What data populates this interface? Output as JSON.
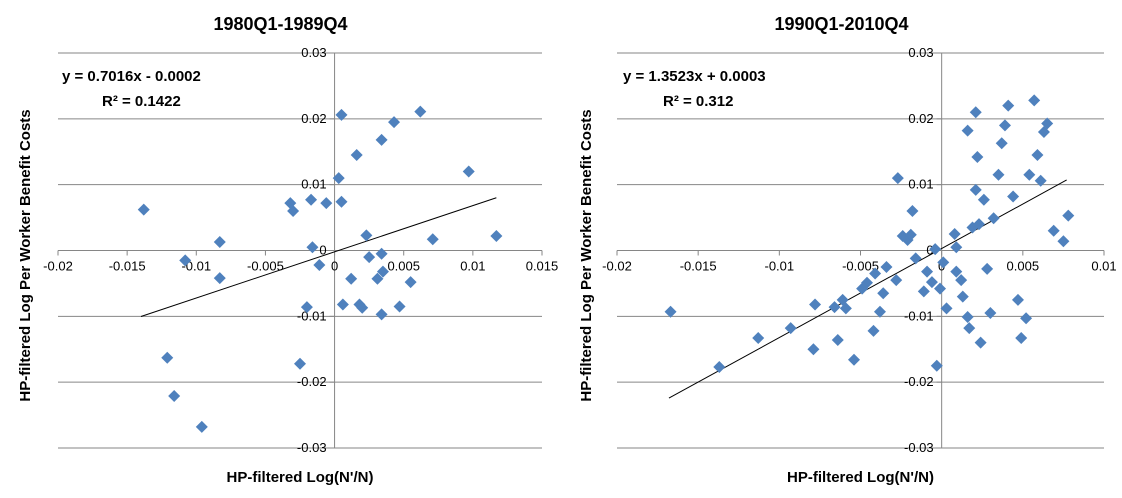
{
  "chart_data": [
    {
      "type": "scatter",
      "title": "1980Q1-1989Q4",
      "xlabel": "HP-filtered Log(N'/N)",
      "ylabel": "HP-filtered Log Per Worker Benefit Costs",
      "xlim": [
        -0.02,
        0.015
      ],
      "ylim": [
        -0.03,
        0.03
      ],
      "x_ticks": [
        "-0.02",
        "-0.015",
        "-0.01",
        "-0.005",
        "0",
        "0.005",
        "0.01",
        "0.015"
      ],
      "y_ticks": [
        "-0.03",
        "-0.02",
        "-0.01",
        "0",
        "0.01",
        "0.02",
        "0.03"
      ],
      "grid": "horizontal",
      "marker_color": "#4F81BD",
      "trendline": {
        "slope": 0.7016,
        "intercept": -0.0002,
        "x_range": [
          -0.014,
          0.0117
        ]
      },
      "equation": "y = 0.7016x - 0.0002",
      "r2_label": "R² = 0.1422",
      "points": [
        {
          "x": -0.0138,
          "y": 0.0062
        },
        {
          "x": -0.0108,
          "y": -0.0015
        },
        {
          "x": -0.0083,
          "y": 0.0013
        },
        {
          "x": -0.0083,
          "y": -0.0042
        },
        {
          "x": -0.0121,
          "y": -0.0163
        },
        {
          "x": -0.0116,
          "y": -0.0221
        },
        {
          "x": -0.0096,
          "y": -0.0268
        },
        {
          "x": -0.0032,
          "y": 0.0072
        },
        {
          "x": -0.003,
          "y": 0.006
        },
        {
          "x": -0.0017,
          "y": 0.0077
        },
        {
          "x": -0.0006,
          "y": 0.0072
        },
        {
          "x": 0.0005,
          "y": 0.0074
        },
        {
          "x": 0.0003,
          "y": 0.011
        },
        {
          "x": 0.0016,
          "y": 0.0145
        },
        {
          "x": 0.0005,
          "y": 0.0206
        },
        {
          "x": 0.0043,
          "y": 0.0195
        },
        {
          "x": 0.0034,
          "y": 0.0168
        },
        {
          "x": 0.0062,
          "y": 0.0211
        },
        {
          "x": 0.0097,
          "y": 0.012
        },
        {
          "x": -0.0016,
          "y": 0.0005
        },
        {
          "x": -0.0011,
          "y": -0.0022
        },
        {
          "x": 0.0023,
          "y": 0.0023
        },
        {
          "x": 0.0025,
          "y": -0.001
        },
        {
          "x": 0.0034,
          "y": -0.0005
        },
        {
          "x": 0.0031,
          "y": -0.0043
        },
        {
          "x": 0.0035,
          "y": -0.0032
        },
        {
          "x": 0.0055,
          "y": -0.0048
        },
        {
          "x": 0.0071,
          "y": 0.0017
        },
        {
          "x": 0.0117,
          "y": 0.0022
        },
        {
          "x": 0.0012,
          "y": -0.0043
        },
        {
          "x": -0.002,
          "y": -0.0086
        },
        {
          "x": 0.0006,
          "y": -0.0082
        },
        {
          "x": 0.0018,
          "y": -0.0082
        },
        {
          "x": 0.002,
          "y": -0.0087
        },
        {
          "x": 0.0034,
          "y": -0.0097
        },
        {
          "x": 0.0047,
          "y": -0.0085
        },
        {
          "x": -0.0025,
          "y": -0.0172
        }
      ]
    },
    {
      "type": "scatter",
      "title": "1990Q1-2010Q4",
      "xlabel": "HP-filtered Log(N'/N)",
      "ylabel": "HP-filtered Log Per Worker Benefit Costs",
      "xlim": [
        -0.02,
        0.01
      ],
      "ylim": [
        -0.03,
        0.03
      ],
      "x_ticks": [
        "-0.02",
        "-0.015",
        "-0.01",
        "-0.005",
        "0",
        "0.005",
        "0.01"
      ],
      "y_ticks": [
        "-0.03",
        "-0.02",
        "-0.01",
        "0",
        "0.01",
        "0.02",
        "0.03"
      ],
      "grid": "horizontal",
      "marker_color": "#4F81BD",
      "trendline": {
        "slope": 1.3523,
        "intercept": 0.0003,
        "x_range": [
          -0.0168,
          0.0077
        ]
      },
      "equation": "y = 1.3523x + 0.0003",
      "r2_label": "R² = 0.312",
      "points": [
        {
          "x": -0.0167,
          "y": -0.0093
        },
        {
          "x": -0.0137,
          "y": -0.0177
        },
        {
          "x": -0.0113,
          "y": -0.0133
        },
        {
          "x": -0.0093,
          "y": -0.0118
        },
        {
          "x": -0.0078,
          "y": -0.0082
        },
        {
          "x": -0.0079,
          "y": -0.015
        },
        {
          "x": -0.0066,
          "y": -0.0086
        },
        {
          "x": -0.0061,
          "y": -0.0075
        },
        {
          "x": -0.0059,
          "y": -0.0088
        },
        {
          "x": -0.0064,
          "y": -0.0136
        },
        {
          "x": -0.0054,
          "y": -0.0166
        },
        {
          "x": -0.0049,
          "y": -0.0058
        },
        {
          "x": -0.0046,
          "y": -0.0049
        },
        {
          "x": -0.0041,
          "y": -0.0035
        },
        {
          "x": -0.0034,
          "y": -0.0025
        },
        {
          "x": -0.0036,
          "y": -0.0065
        },
        {
          "x": -0.0038,
          "y": -0.0093
        },
        {
          "x": -0.0042,
          "y": -0.0122
        },
        {
          "x": -0.0028,
          "y": -0.0045
        },
        {
          "x": -0.0024,
          "y": 0.0022
        },
        {
          "x": -0.0021,
          "y": 0.0016
        },
        {
          "x": -0.0019,
          "y": 0.0024
        },
        {
          "x": -0.0018,
          "y": 0.006
        },
        {
          "x": -0.0027,
          "y": 0.011
        },
        {
          "x": -0.0016,
          "y": -0.0012
        },
        {
          "x": -0.0009,
          "y": -0.0032
        },
        {
          "x": -0.0006,
          "y": -0.0048
        },
        {
          "x": -0.0004,
          "y": 0.0002
        },
        {
          "x": 0.0001,
          "y": -0.0018
        },
        {
          "x": -0.0001,
          "y": -0.0058
        },
        {
          "x": 0.0003,
          "y": -0.0088
        },
        {
          "x": -0.0003,
          "y": -0.0175
        },
        {
          "x": 0.0008,
          "y": 0.0025
        },
        {
          "x": 0.0009,
          "y": -0.0032
        },
        {
          "x": 0.0012,
          "y": -0.0045
        },
        {
          "x": 0.0013,
          "y": -0.007
        },
        {
          "x": 0.0016,
          "y": -0.0101
        },
        {
          "x": 0.0017,
          "y": -0.0118
        },
        {
          "x": 0.0019,
          "y": 0.0035
        },
        {
          "x": 0.0021,
          "y": 0.0092
        },
        {
          "x": 0.0022,
          "y": 0.0142
        },
        {
          "x": 0.0021,
          "y": 0.021
        },
        {
          "x": 0.0026,
          "y": 0.0077
        },
        {
          "x": 0.0028,
          "y": -0.0028
        },
        {
          "x": 0.003,
          "y": -0.0095
        },
        {
          "x": 0.0024,
          "y": -0.014
        },
        {
          "x": 0.0032,
          "y": 0.0049
        },
        {
          "x": 0.0035,
          "y": 0.0115
        },
        {
          "x": 0.0037,
          "y": 0.0163
        },
        {
          "x": 0.0039,
          "y": 0.019
        },
        {
          "x": 0.0041,
          "y": 0.022
        },
        {
          "x": 0.0044,
          "y": 0.0082
        },
        {
          "x": 0.0047,
          "y": -0.0075
        },
        {
          "x": 0.0049,
          "y": -0.0133
        },
        {
          "x": 0.0052,
          "y": -0.0103
        },
        {
          "x": 0.0057,
          "y": 0.0228
        },
        {
          "x": 0.0059,
          "y": 0.0145
        },
        {
          "x": 0.0061,
          "y": 0.0106
        },
        {
          "x": 0.0063,
          "y": 0.018
        },
        {
          "x": 0.0065,
          "y": 0.0193
        },
        {
          "x": 0.0054,
          "y": 0.0115
        },
        {
          "x": 0.0069,
          "y": 0.003
        },
        {
          "x": 0.0075,
          "y": 0.0014
        },
        {
          "x": 0.0078,
          "y": 0.0053
        },
        {
          "x": 0.0016,
          "y": 0.0182
        },
        {
          "x": 0.0023,
          "y": 0.004
        },
        {
          "x": 0.0009,
          "y": 0.0005
        },
        {
          "x": -0.0011,
          "y": -0.0062
        }
      ]
    }
  ]
}
